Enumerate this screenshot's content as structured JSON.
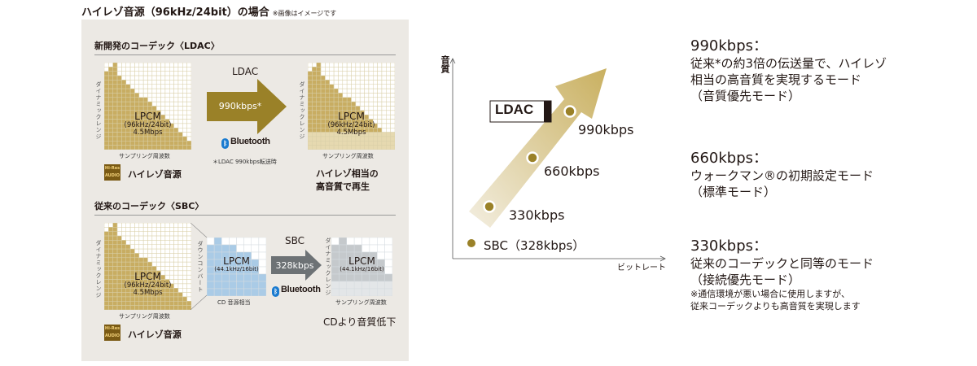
{
  "title": "ハイレゾ音源（96kHz/24bit）の場合",
  "title_note": "※画像はイメージです",
  "ldac_section": {
    "heading": "新開発のコーデック〈LDAC〉",
    "source": {
      "axis_y": "ダイナミックレンジ",
      "axis_x": "サンプリング周波数",
      "name": "LPCM",
      "spec": "(96kHz/24bit)",
      "rate": "4.5Mbps",
      "badge_top": "Hi-Res",
      "badge_bottom": "AUDIO",
      "caption": "ハイレゾ音源"
    },
    "arrow": {
      "codec": "LDAC",
      "bitrate": "990kbps*",
      "bluetooth": "Bluetooth",
      "note": "＊LDAC 990kbps転送時"
    },
    "result": {
      "axis_y": "ダイナミックレンジ",
      "axis_x": "サンプリング周波数",
      "name": "LPCM",
      "spec": "(96kHz/24bit)",
      "rate": "4.5Mbps",
      "caption1": "ハイレゾ相当の",
      "caption2": "高音質で再生"
    }
  },
  "sbc_section": {
    "heading": "従来のコーデック〈SBC〉",
    "source": {
      "axis_y": "ダイナミックレンジ",
      "axis_x": "サンプリング周波数",
      "name": "LPCM",
      "spec": "(96kHz/24bit)",
      "rate": "4.5Mbps",
      "badge_top": "Hi-Res",
      "badge_bottom": "AUDIO",
      "caption": "ハイレゾ音源"
    },
    "downconvert": {
      "label": "ダウンコンバート",
      "name": "LPCM",
      "spec": "(44.1kHz/16bit)",
      "caption": "CD 音源相当"
    },
    "arrow": {
      "codec": "SBC",
      "bitrate": "328kbps",
      "bluetooth": "Bluetooth"
    },
    "result": {
      "axis_y": "ダイナミックレンジ",
      "axis_x": "サンプリング周波数",
      "name": "LPCM",
      "spec": "(44.1kHz/16bit)",
      "caption": "CDより音質低下"
    }
  },
  "quality_chart": {
    "y_label": "音質",
    "x_label": "ビットレート",
    "logo": "LDAC",
    "points": [
      {
        "label": "330kbps"
      },
      {
        "label": "660kbps"
      },
      {
        "label": "990kbps"
      }
    ],
    "sbc": "SBC（328kbps）",
    "colors": {
      "point": "#9a8128",
      "arrow": "#c9b060"
    }
  },
  "modes": [
    {
      "title": "990kbps：",
      "lines": [
        "従来*の約3倍の伝送量で、ハイレゾ",
        "相当の高音質を実現するモード",
        "（音質優先モード）"
      ]
    },
    {
      "title": "660kbps：",
      "lines": [
        "ウォークマン®の初期設定モード",
        "（標準モード）"
      ]
    },
    {
      "title": "330kbps：",
      "lines": [
        "従来のコーデックと同等のモード",
        "（接続優先モード）"
      ],
      "notes": [
        "※通信環境が悪い場合に使用しますが、",
        "従来コーデックよりも高音質を実現します"
      ]
    }
  ]
}
